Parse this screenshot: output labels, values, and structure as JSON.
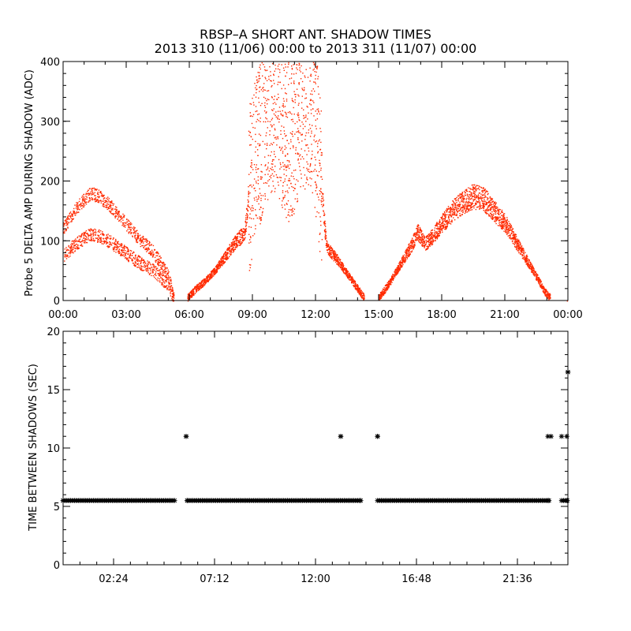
{
  "figure": {
    "title_line1": "RBSP–A SHORT ANT. SHADOW TIMES",
    "title_line2": "2013 310 (11/06) 00:00 to 2013 311 (11/07) 00:00"
  },
  "colors": {
    "points_top": "#ff2a00",
    "points_bottom": "#000000",
    "axes": "#000000"
  },
  "chart_data": [
    {
      "type": "scatter",
      "title": "",
      "xlabel": "",
      "ylabel": "Probe 5 DELTA AMP DURING SHADOW (ADC)",
      "xlim": [
        0,
        24
      ],
      "ylim": [
        0,
        400
      ],
      "x_ticks": [
        0,
        3,
        6,
        9,
        12,
        15,
        18,
        21,
        24
      ],
      "x_tick_labels": [
        "00:00",
        "03:00",
        "06:00",
        "09:00",
        "12:00",
        "15:00",
        "18:00",
        "21:00",
        "00:00"
      ],
      "y_ticks": [
        0,
        100,
        200,
        300,
        400
      ],
      "y_tick_labels": [
        "0",
        "100",
        "200",
        "300",
        "400"
      ],
      "grid": false,
      "series": [
        {
          "x": [
            0.0,
            0.5,
            1.0,
            1.3,
            1.7,
            2.2,
            2.7,
            3.2,
            3.7,
            4.2,
            4.6,
            5.0,
            5.25,
            5.9,
            6.3,
            6.8,
            7.3,
            7.7,
            8.1,
            8.5,
            8.65,
            8.8,
            9.0,
            9.3,
            9.6,
            9.9,
            10.2,
            10.5,
            10.8,
            11.1,
            11.4,
            11.7,
            11.9,
            12.1,
            12.3,
            12.5,
            13.0,
            13.5,
            14.0,
            14.3,
            15.0,
            15.5,
            16.0,
            16.5,
            16.85,
            17.2,
            17.6,
            18.0,
            18.5,
            19.0,
            19.5,
            20.0,
            20.5,
            21.0,
            21.5,
            22.0,
            22.5,
            22.9,
            23.15,
            23.95
          ],
          "y": [
            120,
            150,
            170,
            180,
            175,
            160,
            140,
            120,
            100,
            85,
            65,
            40,
            5,
            5,
            20,
            35,
            55,
            75,
            95,
            110,
            120,
            180,
            220,
            260,
            300,
            320,
            310,
            280,
            270,
            300,
            320,
            330,
            310,
            250,
            180,
            90,
            70,
            45,
            20,
            5,
            5,
            30,
            60,
            90,
            115,
            95,
            110,
            130,
            150,
            165,
            175,
            170,
            150,
            130,
            100,
            70,
            40,
            15,
            5,
            0
          ]
        }
      ]
    },
    {
      "type": "scatter",
      "title": "",
      "xlabel": "",
      "ylabel": "TIME BETWEEN SHADOWS (SEC)",
      "xlim": [
        0,
        24
      ],
      "ylim": [
        0,
        20
      ],
      "x_ticks": [
        2.4,
        7.2,
        12.0,
        16.8,
        21.6
      ],
      "x_tick_labels": [
        "02:24",
        "07:12",
        "12:00",
        "16:48",
        "21:36"
      ],
      "y_ticks": [
        0,
        5,
        10,
        15,
        20
      ],
      "y_tick_labels": [
        "0",
        "5",
        "10",
        "15",
        "20"
      ],
      "grid": false,
      "series": [
        {
          "x": [
            0.0,
            5.3,
            5.85,
            5.9,
            13.2,
            14.15,
            14.95,
            23.1,
            23.7,
            23.95,
            24.0
          ],
          "y": [
            5.5,
            5.5,
            11.0,
            5.5,
            11.0,
            5.5,
            11.0,
            5.5,
            11.0,
            5.5,
            16.5
          ]
        }
      ],
      "markers": {
        "baseline_y": 5.5,
        "baseline_segments": [
          [
            0.0,
            5.3
          ],
          [
            5.9,
            14.15
          ],
          [
            14.95,
            23.1
          ],
          [
            23.7,
            24.0
          ]
        ],
        "isolated_points": [
          [
            5.85,
            11.0
          ],
          [
            13.2,
            11.0
          ],
          [
            14.95,
            11.0
          ],
          [
            23.05,
            11.0
          ],
          [
            23.2,
            11.0
          ],
          [
            23.95,
            11.0
          ],
          [
            24.0,
            16.5
          ]
        ]
      }
    }
  ]
}
